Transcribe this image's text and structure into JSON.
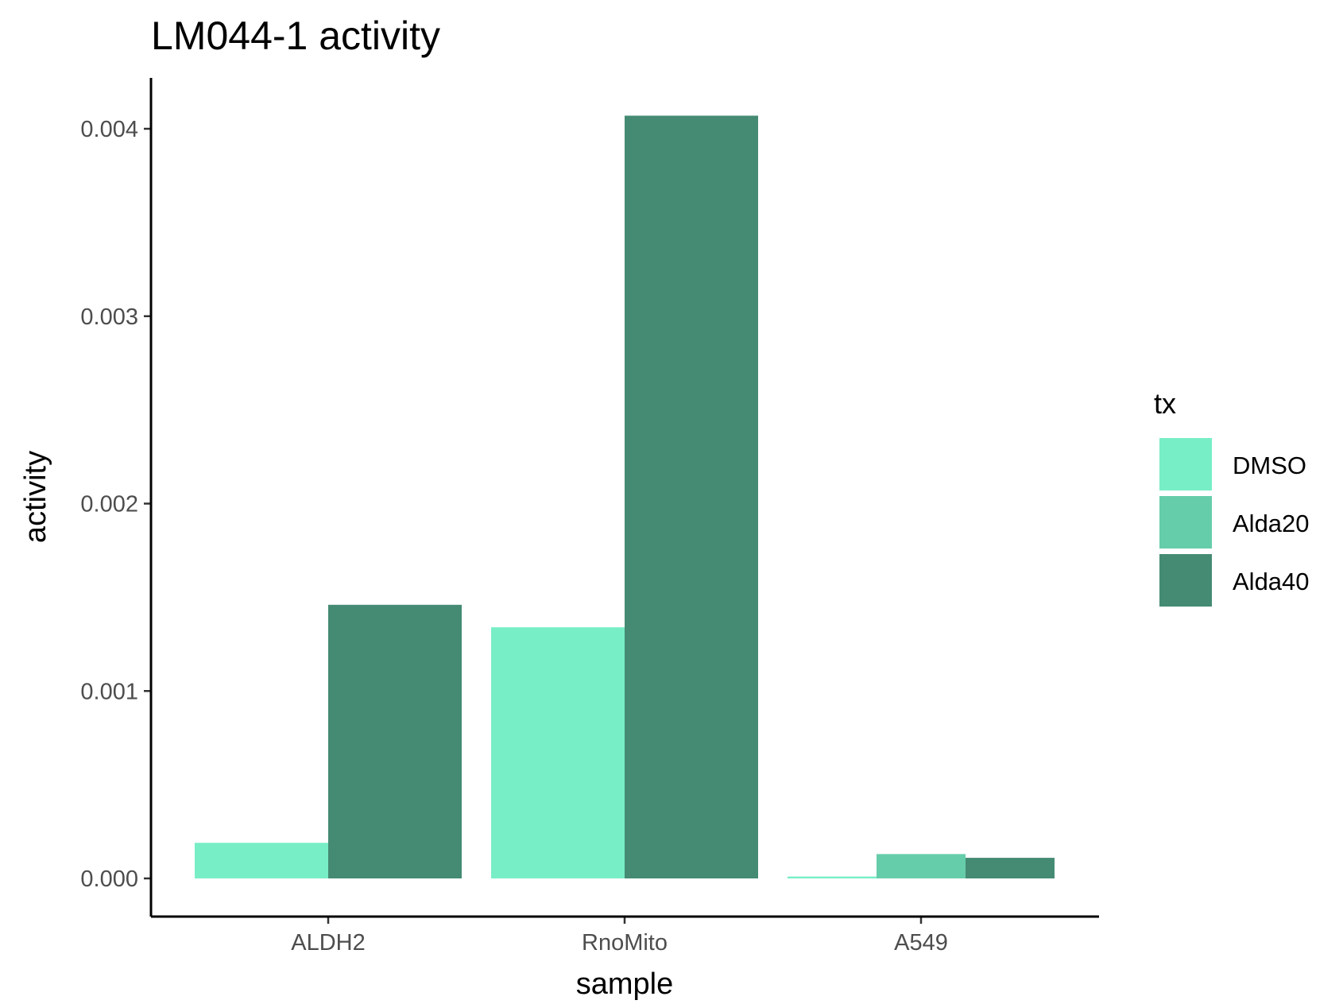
{
  "chart_data": {
    "type": "bar",
    "title": "LM044-1 activity",
    "xlabel": "sample",
    "ylabel": "activity",
    "categories": [
      "ALDH2",
      "RnoMito",
      "A549"
    ],
    "ylim": [
      -0.00019,
      0.00427
    ],
    "yticks": [
      "0.000",
      "0.001",
      "0.002",
      "0.003",
      "0.004"
    ],
    "ytick_values": [
      0,
      0.001,
      0.002,
      0.003,
      0.004
    ],
    "series": [
      {
        "name": "DMSO",
        "color": "#78EEC6",
        "values": [
          0.00019,
          0.00134,
          1e-05
        ]
      },
      {
        "name": "Alda20",
        "color": "#66CDAA",
        "values": [
          null,
          null,
          0.00013
        ]
      },
      {
        "name": "Alda40",
        "color": "#458B74",
        "values": [
          0.00146,
          0.00407,
          0.00011
        ]
      }
    ],
    "legend": {
      "title": "tx",
      "position": "right"
    },
    "grid": false
  }
}
